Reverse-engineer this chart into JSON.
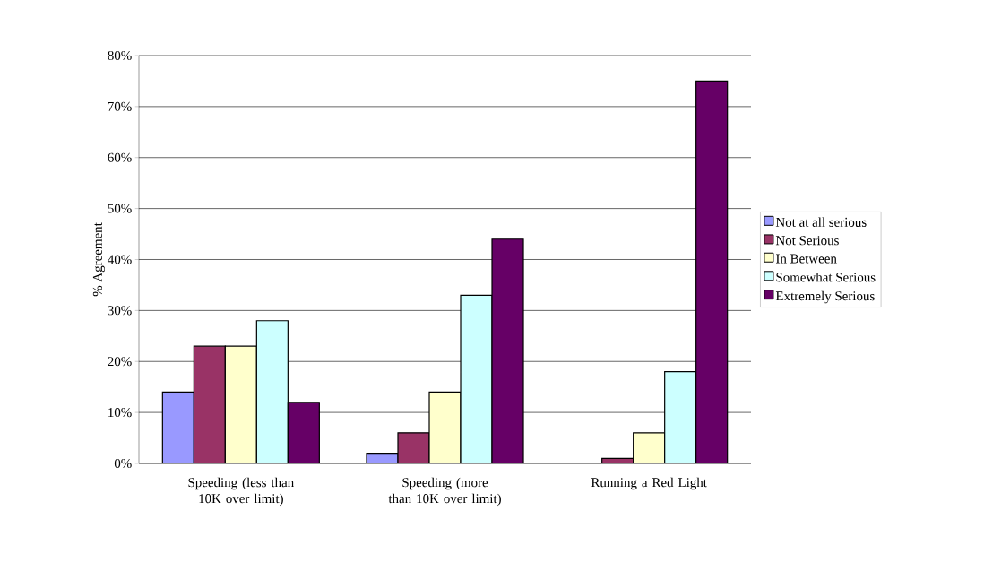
{
  "chart_data": {
    "type": "bar",
    "ylabel": "% Agreement",
    "categories": [
      "Speeding (less than 10K over limit)",
      "Speeding (more than 10K over limit)",
      "Running a Red Light"
    ],
    "series": [
      {
        "name": "Not at all serious",
        "color": "#9999ff",
        "values": [
          14,
          2,
          0
        ]
      },
      {
        "name": "Not Serious",
        "color": "#993366",
        "values": [
          23,
          6,
          1
        ]
      },
      {
        "name": "In Between",
        "color": "#ffffcc",
        "values": [
          23,
          14,
          6
        ]
      },
      {
        "name": "Somewhat Serious",
        "color": "#ccffff",
        "values": [
          28,
          33,
          18
        ]
      },
      {
        "name": "Extremely Serious",
        "color": "#660066",
        "values": [
          12,
          44,
          75
        ]
      }
    ],
    "ylim": [
      0,
      80
    ],
    "yticks": [
      {
        "value": 0,
        "label": "0%"
      },
      {
        "value": 10,
        "label": "10%"
      },
      {
        "value": 20,
        "label": "20%"
      },
      {
        "value": 30,
        "label": "30%"
      },
      {
        "value": 40,
        "label": "40%"
      },
      {
        "value": 50,
        "label": "50%"
      },
      {
        "value": 60,
        "label": "60%"
      },
      {
        "value": 70,
        "label": "70%"
      },
      {
        "value": 80,
        "label": "80%"
      }
    ],
    "grid": "y",
    "legend": "right"
  }
}
